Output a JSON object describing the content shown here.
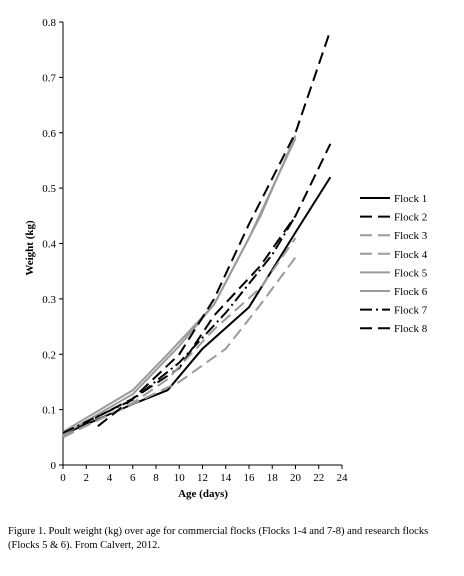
{
  "chart_data": {
    "type": "line",
    "xlabel": "Age (days)",
    "ylabel": "Weight (kg)",
    "xlim": [
      0,
      24
    ],
    "ylim": [
      0,
      0.8
    ],
    "xticks": [
      0,
      2,
      4,
      6,
      8,
      10,
      12,
      14,
      16,
      18,
      20,
      22,
      24
    ],
    "yticks": [
      0,
      0.1,
      0.2,
      0.3,
      0.4,
      0.5,
      0.6,
      0.7,
      0.8
    ],
    "grid": false,
    "legend_position": "right",
    "series": [
      {
        "name": "Flock 1",
        "color": "#000000",
        "dash": "solid",
        "x": [
          0,
          6,
          9,
          12,
          16,
          20,
          23
        ],
        "y": [
          0.055,
          0.11,
          0.135,
          0.21,
          0.285,
          0.42,
          0.52
        ]
      },
      {
        "name": "Flock 2",
        "color": "#000000",
        "dash": "long",
        "x": [
          0,
          6,
          10,
          13,
          17,
          20,
          23
        ],
        "y": [
          0.055,
          0.12,
          0.175,
          0.27,
          0.36,
          0.45,
          0.58
        ]
      },
      {
        "name": "Flock 3",
        "color": "#9a9a9a",
        "dash": "long",
        "x": [
          0,
          6,
          10,
          14,
          17,
          20
        ],
        "y": [
          0.052,
          0.11,
          0.15,
          0.21,
          0.29,
          0.375
        ]
      },
      {
        "name": "Flock 4",
        "color": "#9a9a9a",
        "dash": "long",
        "x": [
          0,
          6,
          9,
          13,
          17,
          20
        ],
        "y": [
          0.05,
          0.112,
          0.155,
          0.245,
          0.32,
          0.41
        ]
      },
      {
        "name": "Flock 5",
        "color": "#9a9a9a",
        "dash": "solid",
        "x": [
          0,
          6,
          9,
          13,
          17,
          20
        ],
        "y": [
          0.06,
          0.135,
          0.2,
          0.29,
          0.45,
          0.595
        ]
      },
      {
        "name": "Flock 6",
        "color": "#9a9a9a",
        "dash": "solid",
        "x": [
          0,
          6,
          10,
          13,
          16,
          20
        ],
        "y": [
          0.055,
          0.128,
          0.215,
          0.29,
          0.41,
          0.59
        ]
      },
      {
        "name": "Flock 7",
        "color": "#000000",
        "dash": "dashdot",
        "x": [
          0,
          6,
          10,
          14,
          18,
          20
        ],
        "y": [
          0.058,
          0.118,
          0.185,
          0.275,
          0.38,
          0.45
        ]
      },
      {
        "name": "Flock 8",
        "color": "#000000",
        "dash": "long",
        "x": [
          3,
          6,
          10,
          13,
          16,
          20,
          23
        ],
        "y": [
          0.07,
          0.12,
          0.2,
          0.3,
          0.435,
          0.6,
          0.785
        ]
      }
    ]
  },
  "caption": "Figure 1. Poult weight (kg) over age for commercial flocks (Flocks 1-4 and 7-8) and research flocks (Flocks 5 & 6). From Calvert, 2012."
}
